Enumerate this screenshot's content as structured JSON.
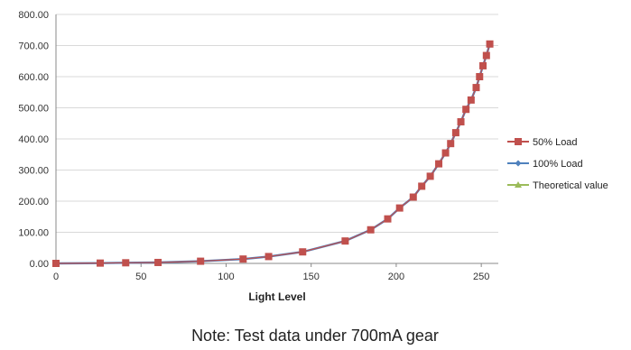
{
  "chart_data": {
    "type": "line",
    "title": "",
    "xlabel": "Light Level",
    "ylabel": "",
    "xlim": [
      0,
      260
    ],
    "ylim": [
      0,
      800
    ],
    "x_ticks": [
      0,
      50,
      100,
      150,
      200,
      250
    ],
    "y_ticks": [
      0,
      100,
      200,
      300,
      400,
      500,
      600,
      700,
      800
    ],
    "y_tick_labels": [
      "0.00",
      "100.00",
      "200.00",
      "300.00",
      "400.00",
      "500.00",
      "600.00",
      "700.00",
      "800.00"
    ],
    "grid": true,
    "legend_position": "right",
    "x": [
      0,
      26,
      41,
      60,
      85,
      110,
      125,
      145,
      170,
      185,
      195,
      202,
      210,
      215,
      220,
      225,
      229,
      232,
      235,
      238,
      241,
      244,
      247,
      249,
      251,
      253,
      255
    ],
    "series": [
      {
        "name": "50% Load",
        "color": "#c0504d",
        "marker": "square",
        "values": [
          0,
          1,
          2,
          3,
          7,
          14,
          22,
          37,
          72,
          108,
          143,
          178,
          213,
          248,
          280,
          320,
          355,
          385,
          420,
          455,
          495,
          525,
          565,
          600,
          635,
          668,
          705
        ]
      },
      {
        "name": "100% Load",
        "color": "#4f81bd",
        "marker": "diamond",
        "values": [
          0,
          1,
          2,
          3,
          7,
          14,
          22,
          37,
          72,
          108,
          143,
          178,
          213,
          248,
          280,
          320,
          355,
          385,
          420,
          455,
          495,
          525,
          565,
          600,
          635,
          668,
          705
        ]
      },
      {
        "name": "Theoretical value",
        "color": "#9bbb59",
        "marker": "triangle",
        "values": [
          0,
          1,
          2,
          3,
          7,
          14,
          22,
          37,
          72,
          108,
          143,
          178,
          213,
          248,
          280,
          320,
          355,
          385,
          420,
          455,
          495,
          525,
          565,
          600,
          635,
          668,
          705
        ]
      }
    ]
  },
  "note": "Note: Test data under 700mA gear",
  "colors": {
    "gridline": "#d9d9d9",
    "axis": "#888888"
  }
}
